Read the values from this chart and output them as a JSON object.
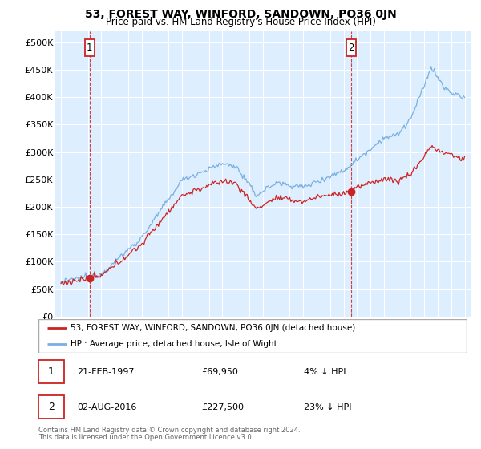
{
  "title": "53, FOREST WAY, WINFORD, SANDOWN, PO36 0JN",
  "subtitle": "Price paid vs. HM Land Registry's House Price Index (HPI)",
  "legend_line1": "53, FOREST WAY, WINFORD, SANDOWN, PO36 0JN (detached house)",
  "legend_line2": "HPI: Average price, detached house, Isle of Wight",
  "annotation1_text": "21-FEB-1997",
  "annotation1_price_text": "£69,950",
  "annotation1_pct": "4% ↓ HPI",
  "annotation2_text": "02-AUG-2016",
  "annotation2_price_text": "£227,500",
  "annotation2_pct": "23% ↓ HPI",
  "footer1": "Contains HM Land Registry data © Crown copyright and database right 2024.",
  "footer2": "This data is licensed under the Open Government Licence v3.0.",
  "hpi_color": "#7aafdf",
  "price_color": "#cc2222",
  "dot_color": "#cc2222",
  "vline_color": "#cc2222",
  "background_color": "#ddeeff",
  "ylim_min": 0,
  "ylim_max": 520000
}
